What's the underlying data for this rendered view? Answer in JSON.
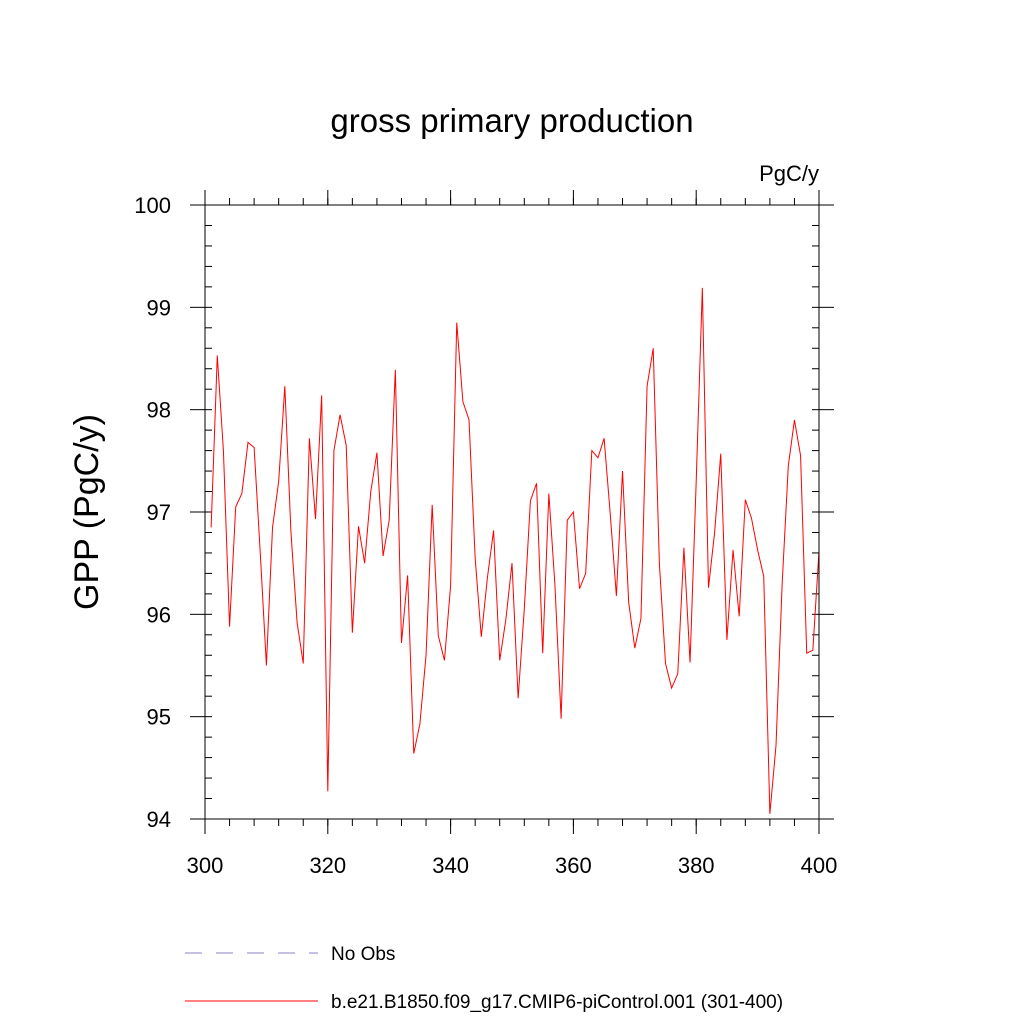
{
  "chart_data": {
    "type": "line",
    "title": "gross primary production",
    "units_label": "PgC/y",
    "xlabel": "",
    "ylabel": "GPP  (PgC/y)",
    "xlim": [
      300,
      400
    ],
    "ylim": [
      94,
      100
    ],
    "xticks": [
      300,
      320,
      340,
      360,
      380,
      400
    ],
    "xticks_text": [
      "300",
      "320",
      "340",
      "360",
      "380",
      "400"
    ],
    "yticks": [
      94,
      95,
      96,
      97,
      98,
      99,
      100
    ],
    "yticks_text": [
      "94",
      "95",
      "96",
      "97",
      "98",
      "99",
      "100"
    ],
    "grid": false,
    "legend_position": "bottom",
    "legend": [
      {
        "label": "No Obs",
        "style": "dashed",
        "color": "#8a86c8"
      },
      {
        "label": "b.e21.B1850.f09_g17.CMIP6-piControl.001 (301-400)",
        "style": "solid",
        "color": "#ff0000"
      }
    ],
    "series": [
      {
        "name": "b.e21.B1850.f09_g17.CMIP6-piControl.001 (301-400)",
        "color": "#ff0000",
        "x": [
          301,
          302,
          303,
          304,
          305,
          306,
          307,
          308,
          309,
          310,
          311,
          312,
          313,
          314,
          315,
          316,
          317,
          318,
          319,
          320,
          321,
          322,
          323,
          324,
          325,
          326,
          327,
          328,
          329,
          330,
          331,
          332,
          333,
          334,
          335,
          336,
          337,
          338,
          339,
          340,
          341,
          342,
          343,
          344,
          345,
          346,
          347,
          348,
          349,
          350,
          351,
          352,
          353,
          354,
          355,
          356,
          357,
          358,
          359,
          360,
          361,
          362,
          363,
          364,
          365,
          366,
          367,
          368,
          369,
          370,
          371,
          372,
          373,
          374,
          375,
          376,
          377,
          378,
          379,
          380,
          381,
          382,
          383,
          384,
          385,
          386,
          387,
          388,
          389,
          390,
          391,
          392,
          393,
          394,
          395,
          396,
          397,
          398,
          399,
          400
        ],
        "values": [
          96.85,
          98.53,
          97.6,
          95.88,
          97.05,
          97.18,
          97.68,
          97.63,
          96.6,
          95.5,
          96.85,
          97.3,
          98.23,
          96.8,
          95.92,
          95.52,
          97.72,
          96.93,
          98.14,
          94.27,
          97.6,
          97.95,
          97.65,
          95.82,
          96.86,
          96.5,
          97.2,
          97.58,
          96.57,
          96.92,
          98.39,
          95.72,
          96.38,
          94.64,
          94.93,
          95.6,
          97.07,
          95.79,
          95.55,
          96.28,
          98.85,
          98.08,
          97.9,
          96.55,
          95.78,
          96.36,
          96.82,
          95.55,
          95.95,
          96.5,
          95.18,
          96.05,
          97.11,
          97.28,
          95.62,
          97.18,
          96.28,
          94.98,
          96.92,
          97.0,
          96.25,
          96.4,
          97.6,
          97.53,
          97.72,
          96.98,
          96.18,
          97.4,
          96.12,
          95.67,
          95.96,
          98.23,
          98.6,
          96.5,
          95.52,
          95.28,
          95.42,
          96.65,
          95.53,
          97.3,
          99.19,
          96.26,
          96.8,
          97.57,
          95.75,
          96.63,
          95.98,
          97.12,
          96.94,
          96.63,
          96.37,
          94.05,
          94.72,
          96.3,
          97.45,
          97.9,
          97.55,
          95.62,
          95.65,
          96.62
        ]
      }
    ]
  }
}
